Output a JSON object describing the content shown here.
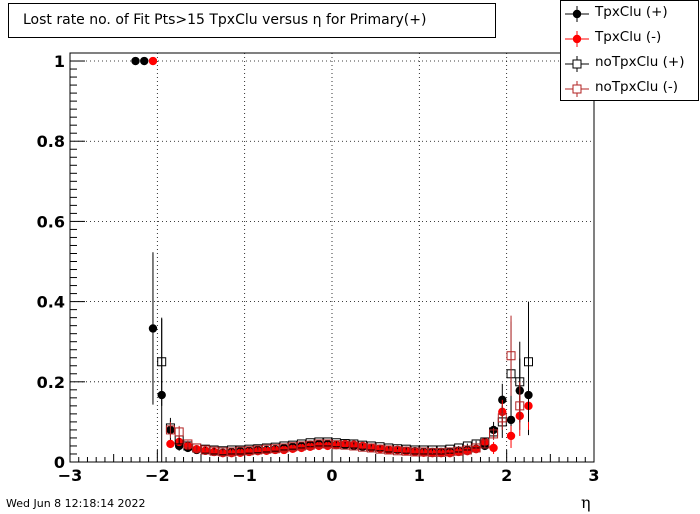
{
  "chart_data": {
    "type": "scatter",
    "title": "Lost rate no. of Fit Pts>15 TpxClu versus η for Primary(+)",
    "xlabel": "η",
    "ylabel": "",
    "xlim": [
      -3,
      3
    ],
    "ylim": [
      0,
      1.02
    ],
    "x_ticks": [
      -3,
      -2,
      -1,
      0,
      1,
      2,
      3
    ],
    "x_tick_labels": [
      "−3",
      "−2",
      "−1",
      "0",
      "1",
      "2",
      "3"
    ],
    "y_ticks": [
      0,
      0.2,
      0.4,
      0.6,
      0.8,
      1
    ],
    "y_tick_labels": [
      "0",
      "0.2",
      "0.4",
      "0.6",
      "0.8",
      "1"
    ],
    "grid": true,
    "legend_position": "top-right",
    "series": [
      {
        "name": "TpxClu (+)",
        "color": "#000000",
        "marker": "filled-circle",
        "x": [
          -2.25,
          -2.15,
          -2.05,
          -1.95,
          -1.85,
          -1.75,
          -1.65,
          -1.55,
          -1.45,
          -1.35,
          -1.25,
          -1.15,
          -1.05,
          -0.95,
          -0.85,
          -0.75,
          -0.65,
          -0.55,
          -0.45,
          -0.35,
          -0.25,
          -0.15,
          -0.05,
          0.05,
          0.15,
          0.25,
          0.35,
          0.45,
          0.55,
          0.65,
          0.75,
          0.85,
          0.95,
          1.05,
          1.15,
          1.25,
          1.35,
          1.45,
          1.55,
          1.65,
          1.75,
          1.85,
          1.95,
          2.05,
          2.15,
          2.25
        ],
        "y": [
          1.0,
          1.0,
          0.333,
          0.167,
          0.08,
          0.04,
          0.035,
          0.03,
          0.028,
          0.025,
          0.023,
          0.025,
          0.027,
          0.028,
          0.03,
          0.03,
          0.032,
          0.035,
          0.038,
          0.04,
          0.043,
          0.045,
          0.045,
          0.043,
          0.042,
          0.04,
          0.038,
          0.035,
          0.033,
          0.03,
          0.03,
          0.028,
          0.027,
          0.025,
          0.025,
          0.025,
          0.026,
          0.028,
          0.03,
          0.033,
          0.04,
          0.08,
          0.155,
          0.105,
          0.178,
          0.167
        ],
        "yerr": [
          0,
          0,
          0.19,
          0.19,
          0.03,
          0.012,
          0.01,
          0.006,
          0.005,
          0.005,
          0.004,
          0.004,
          0.004,
          0.004,
          0.004,
          0.004,
          0.004,
          0.004,
          0.004,
          0.004,
          0.004,
          0.004,
          0.004,
          0.004,
          0.004,
          0.004,
          0.004,
          0.004,
          0.004,
          0.004,
          0.004,
          0.004,
          0.004,
          0.004,
          0.004,
          0.004,
          0.004,
          0.005,
          0.005,
          0.006,
          0.01,
          0.02,
          0.04,
          0.05,
          0.08,
          0.1
        ]
      },
      {
        "name": "TpxClu (-)",
        "color": "#ff0000",
        "marker": "filled-circle",
        "x": [
          -2.05,
          -1.85,
          -1.75,
          -1.65,
          -1.55,
          -1.45,
          -1.35,
          -1.25,
          -1.15,
          -1.05,
          -0.95,
          -0.85,
          -0.75,
          -0.65,
          -0.55,
          -0.45,
          -0.35,
          -0.25,
          -0.15,
          -0.05,
          0.05,
          0.15,
          0.25,
          0.35,
          0.45,
          0.55,
          0.65,
          0.75,
          0.85,
          0.95,
          1.05,
          1.15,
          1.25,
          1.35,
          1.45,
          1.55,
          1.65,
          1.75,
          1.85,
          1.95,
          2.05,
          2.15,
          2.25
        ],
        "y": [
          1.0,
          0.045,
          0.05,
          0.04,
          0.032,
          0.028,
          0.025,
          0.022,
          0.022,
          0.023,
          0.025,
          0.027,
          0.028,
          0.03,
          0.03,
          0.033,
          0.035,
          0.038,
          0.04,
          0.04,
          0.042,
          0.045,
          0.043,
          0.04,
          0.036,
          0.033,
          0.03,
          0.03,
          0.027,
          0.025,
          0.023,
          0.022,
          0.022,
          0.022,
          0.025,
          0.027,
          0.032,
          0.05,
          0.035,
          0.125,
          0.065,
          0.115,
          0.14
        ],
        "yerr": [
          0,
          0.01,
          0.01,
          0.008,
          0.006,
          0.005,
          0.004,
          0.004,
          0.004,
          0.004,
          0.004,
          0.004,
          0.004,
          0.004,
          0.004,
          0.004,
          0.004,
          0.004,
          0.004,
          0.004,
          0.004,
          0.004,
          0.004,
          0.004,
          0.004,
          0.004,
          0.004,
          0.004,
          0.004,
          0.004,
          0.004,
          0.004,
          0.004,
          0.004,
          0.004,
          0.005,
          0.006,
          0.01,
          0.015,
          0.03,
          0.03,
          0.05,
          0.06
        ]
      },
      {
        "name": "noTpxClu (+)",
        "color": "#000000",
        "marker": "open-square",
        "x": [
          -1.95,
          -1.85,
          -1.75,
          -1.65,
          -1.55,
          -1.45,
          -1.35,
          -1.25,
          -1.15,
          -1.05,
          -0.95,
          -0.85,
          -0.75,
          -0.65,
          -0.55,
          -0.45,
          -0.35,
          -0.25,
          -0.15,
          -0.05,
          0.05,
          0.15,
          0.25,
          0.35,
          0.45,
          0.55,
          0.65,
          0.75,
          0.85,
          0.95,
          1.05,
          1.15,
          1.25,
          1.35,
          1.45,
          1.55,
          1.65,
          1.75,
          1.85,
          1.95,
          2.05,
          2.15,
          2.25
        ],
        "y": [
          0.25,
          0.085,
          0.055,
          0.04,
          0.035,
          0.032,
          0.03,
          0.028,
          0.03,
          0.03,
          0.032,
          0.033,
          0.035,
          0.037,
          0.04,
          0.042,
          0.045,
          0.048,
          0.05,
          0.05,
          0.048,
          0.046,
          0.045,
          0.042,
          0.04,
          0.038,
          0.035,
          0.033,
          0.032,
          0.03,
          0.03,
          0.03,
          0.03,
          0.032,
          0.035,
          0.04,
          0.045,
          0.05,
          0.075,
          0.1,
          0.22,
          0.2,
          0.25
        ],
        "yerr": [
          0.11,
          0.02,
          0.01,
          0.008,
          0.006,
          0.005,
          0.005,
          0.004,
          0.004,
          0.004,
          0.004,
          0.004,
          0.004,
          0.004,
          0.004,
          0.004,
          0.004,
          0.004,
          0.004,
          0.004,
          0.004,
          0.004,
          0.004,
          0.004,
          0.004,
          0.004,
          0.004,
          0.004,
          0.004,
          0.004,
          0.004,
          0.004,
          0.004,
          0.004,
          0.005,
          0.006,
          0.008,
          0.01,
          0.015,
          0.04,
          0.13,
          0.1,
          0.15
        ]
      },
      {
        "name": "noTpxClu (-)",
        "color": "#b22222",
        "marker": "open-square",
        "x": [
          -1.85,
          -1.75,
          -1.65,
          -1.55,
          -1.45,
          -1.35,
          -1.25,
          -1.15,
          -1.05,
          -0.95,
          -0.85,
          -0.75,
          -0.65,
          -0.55,
          -0.45,
          -0.35,
          -0.25,
          -0.15,
          -0.05,
          0.05,
          0.15,
          0.25,
          0.35,
          0.45,
          0.55,
          0.65,
          0.75,
          0.85,
          0.95,
          1.05,
          1.15,
          1.25,
          1.35,
          1.45,
          1.55,
          1.65,
          1.75,
          1.85,
          1.95,
          2.05,
          2.15
        ],
        "y": [
          0.08,
          0.075,
          0.045,
          0.035,
          0.03,
          0.027,
          0.025,
          0.025,
          0.027,
          0.028,
          0.03,
          0.032,
          0.033,
          0.035,
          0.038,
          0.04,
          0.042,
          0.045,
          0.045,
          0.043,
          0.042,
          0.04,
          0.037,
          0.035,
          0.032,
          0.03,
          0.028,
          0.027,
          0.025,
          0.025,
          0.024,
          0.024,
          0.025,
          0.027,
          0.03,
          0.035,
          0.045,
          0.07,
          0.11,
          0.265,
          0.14
        ],
        "yerr": [
          0.02,
          0.015,
          0.008,
          0.006,
          0.005,
          0.004,
          0.004,
          0.004,
          0.004,
          0.004,
          0.004,
          0.004,
          0.004,
          0.004,
          0.004,
          0.004,
          0.004,
          0.004,
          0.004,
          0.004,
          0.004,
          0.004,
          0.004,
          0.004,
          0.004,
          0.004,
          0.004,
          0.004,
          0.004,
          0.004,
          0.004,
          0.004,
          0.004,
          0.005,
          0.006,
          0.008,
          0.01,
          0.015,
          0.03,
          0.1,
          0.06
        ]
      }
    ]
  },
  "footer": {
    "timestamp": "Wed Jun  8 12:18:14 2022"
  }
}
